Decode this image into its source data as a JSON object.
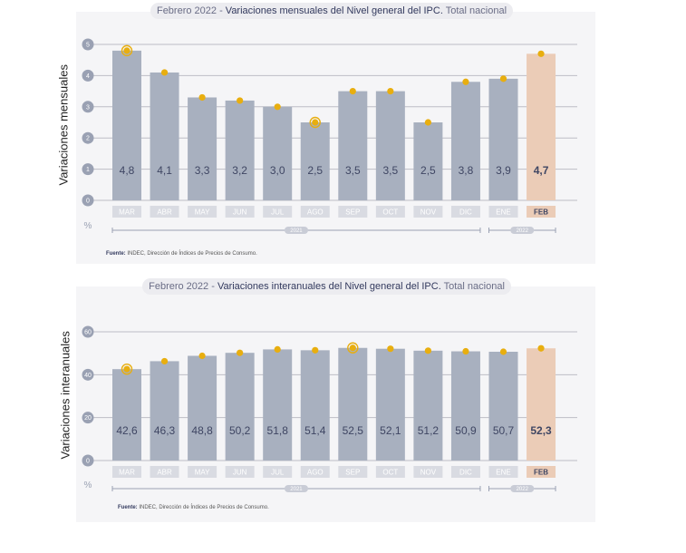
{
  "colors": {
    "bar": "#a8b0bf",
    "bar_highlight": "#ebccb7",
    "dot": "#e8ae0f",
    "grid": "#bdbdc6",
    "tick_circle": "#9aa1b3",
    "value_text": "#3f4663",
    "month_pill": "#d9dbe2"
  },
  "chart_data": [
    {
      "type": "bar",
      "title_prefix": "Febrero 2022 - ",
      "title": "Variaciones mensuales del Nivel general del IPC.",
      "subtitle": " Total nacional",
      "ylabel": "Variaciones mensuales",
      "unit": "%",
      "ylim": [
        0,
        5
      ],
      "yticks": [
        "0",
        "1",
        "2",
        "3",
        "4",
        "5"
      ],
      "categories": [
        "MAR",
        "ABR",
        "MAY",
        "JUN",
        "JUL",
        "AGO",
        "SEP",
        "OCT",
        "NOV",
        "DIC",
        "ENE",
        "FEB"
      ],
      "values": [
        4.8,
        4.1,
        3.3,
        3.2,
        3.0,
        2.5,
        3.5,
        3.5,
        2.5,
        3.8,
        3.9,
        4.7
      ],
      "value_labels": [
        "4,8",
        "4,1",
        "3,3",
        "3,2",
        "3,0",
        "2,5",
        "3,5",
        "3,5",
        "2,5",
        "3,8",
        "3,9",
        "4,7"
      ],
      "highlight_index": 11,
      "ringed_indices": [
        0,
        5
      ],
      "year_groups": [
        {
          "label": "2021",
          "from": 0,
          "to": 9
        },
        {
          "label": "2022",
          "from": 10,
          "to": 11
        }
      ],
      "source_label": "Fuente:",
      "source_text": " INDEC, Dirección de Índices de Precios de Consumo."
    },
    {
      "type": "bar",
      "title_prefix": "Febrero 2022 - ",
      "title": "Variaciones interanuales del Nivel general del IPC.",
      "subtitle": " Total nacional",
      "ylabel": "Variaciones interanuales",
      "unit": "%",
      "ylim": [
        0,
        60
      ],
      "yticks": [
        "0",
        "20",
        "40",
        "60"
      ],
      "categories": [
        "MAR",
        "ABR",
        "MAY",
        "JUN",
        "JUL",
        "AGO",
        "SEP",
        "OCT",
        "NOV",
        "DIC",
        "ENE",
        "FEB"
      ],
      "values": [
        42.6,
        46.3,
        48.8,
        50.2,
        51.8,
        51.4,
        52.5,
        52.1,
        51.2,
        50.9,
        50.7,
        52.3
      ],
      "value_labels": [
        "42,6",
        "46,3",
        "48,8",
        "50,2",
        "51,8",
        "51,4",
        "52,5",
        "52,1",
        "51,2",
        "50,9",
        "50,7",
        "52,3"
      ],
      "highlight_index": 11,
      "ringed_indices": [
        0,
        6
      ],
      "year_groups": [
        {
          "label": "2021",
          "from": 0,
          "to": 9
        },
        {
          "label": "2022",
          "from": 10,
          "to": 11
        }
      ],
      "source_label": "Fuente:",
      "source_text": " INDEC, Dirección de Índices de Precios de Consumo."
    }
  ]
}
